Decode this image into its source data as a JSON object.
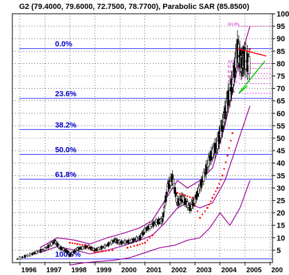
{
  "chart_data": {
    "type": "candlestick",
    "title": "G2 (79.4000, 79.6000, 72.7500, 78.7700), Parabolic SAR (85.8500)",
    "ylim": [
      0,
      100
    ],
    "y_ticks": [
      5,
      10,
      15,
      20,
      25,
      30,
      35,
      40,
      45,
      50,
      55,
      60,
      65,
      70,
      75,
      80,
      85,
      90,
      95,
      100
    ],
    "x_ticks": [
      "1996",
      "1997",
      "1998",
      "1999",
      "2000",
      "2001",
      "2002",
      "2003",
      "2004",
      "2005",
      "200"
    ],
    "fib_levels": [
      {
        "label": "0.0%",
        "value": 86
      },
      {
        "label": "23.6%",
        "value": 66
      },
      {
        "label": "38.2%",
        "value": 53.5
      },
      {
        "label": "50.0%",
        "value": 43.5
      },
      {
        "label": "61.8%",
        "value": 33.5
      },
      {
        "label": "100.0%",
        "value": 1.5
      }
    ],
    "projection_labels": [
      "161.8%",
      "100.0%",
      "61.8%",
      "50.0%",
      "38.2%",
      "23.6%",
      "0.0%"
    ],
    "price_series": {
      "name": "G2",
      "x": [
        1995.9,
        1996.5,
        1997.0,
        1997.4,
        1997.6,
        1997.9,
        1998.0,
        1998.3,
        1998.7,
        1999.0,
        1999.4,
        1999.8,
        2000.0,
        2000.4,
        2000.8,
        2001.0,
        2001.4,
        2001.7,
        2001.9,
        2002.1,
        2002.3,
        2002.5,
        2002.8,
        2003.0,
        2003.3,
        2003.6,
        2003.9,
        2004.1,
        2004.3,
        2004.5,
        2004.7,
        2004.85,
        2005.0,
        2005.2
      ],
      "y": [
        1.5,
        3.5,
        5.5,
        8.5,
        6,
        4.5,
        3,
        5.5,
        6.5,
        5,
        6.5,
        9,
        8,
        8.5,
        10,
        13,
        16,
        17,
        30,
        34,
        24,
        26,
        22,
        25,
        33,
        42,
        48,
        55,
        65,
        72,
        86,
        80,
        82,
        78.8
      ]
    },
    "sar_series": {
      "name": "Parabolic SAR",
      "x": [
        1998.0,
        1998.3,
        1998.6,
        1999.0,
        1999.3,
        1999.7,
        2000.3,
        2000.7,
        2001.0,
        2001.3,
        2002.3,
        2002.6,
        2002.9,
        2003.2,
        2003.5,
        2003.7,
        2003.9,
        2004.1,
        2004.3,
        2004.5,
        2005.2
      ],
      "y": [
        8,
        7.5,
        7,
        4,
        4.5,
        5,
        6,
        7,
        8,
        11,
        28,
        27,
        26,
        18,
        22,
        26,
        30,
        35,
        43,
        52,
        85.85
      ]
    },
    "upper_band": {
      "x": [
        1996.8,
        1997.5,
        1998.2,
        1998.8,
        1999.5,
        2000.2,
        2000.8,
        2001.3,
        2001.8,
        2002.3,
        2002.7,
        2003.2,
        2003.7,
        2004.2,
        2004.7,
        2005.2
      ],
      "y": [
        6,
        10,
        9,
        7.5,
        10,
        12,
        14,
        17,
        25,
        33,
        30,
        33,
        38,
        55,
        78,
        95
      ]
    },
    "middle_band": {
      "x": [
        1996.8,
        1997.5,
        1998.2,
        1998.8,
        1999.5,
        2000.2,
        2000.8,
        2001.3,
        2001.8,
        2002.3,
        2002.7,
        2003.2,
        2003.7,
        2004.2,
        2004.7,
        2005.2
      ],
      "y": [
        4,
        6.5,
        5,
        3.5,
        5,
        7,
        9,
        11,
        16,
        22,
        24,
        22,
        24,
        33,
        48,
        63
      ]
    },
    "lower_band": {
      "x": [
        1998.0,
        1998.6,
        1999.2,
        1999.8,
        2000.4,
        2001.0,
        2001.6,
        2002.2,
        2002.7,
        2003.2,
        2003.6,
        2004.0,
        2004.4,
        2004.8,
        2005.2
      ],
      "y": [
        -1,
        0,
        0.5,
        1,
        2,
        4,
        6,
        7,
        9,
        10,
        14,
        20,
        15,
        22,
        33
      ]
    },
    "trendlines": [
      {
        "color": "#ff0000",
        "x": [
          2004.7,
          2005.85
        ],
        "y": [
          86,
          83
        ]
      },
      {
        "color": "#00cc00",
        "x": [
          2004.75,
          2005.8
        ],
        "y": [
          68,
          81
        ]
      },
      {
        "color": "#00cc00",
        "x": [
          2004.75,
          2005.1
        ],
        "y": [
          68,
          71
        ]
      }
    ]
  }
}
